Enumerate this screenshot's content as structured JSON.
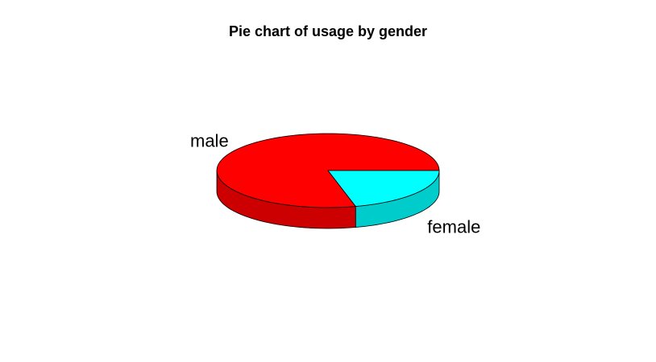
{
  "chart_data": {
    "type": "pie",
    "style": "3d",
    "title": "Pie chart of usage by gender",
    "categories": [
      "male",
      "female"
    ],
    "values": [
      79,
      21
    ],
    "colors": [
      "#ff0000",
      "#00ffff"
    ],
    "side_colors": [
      "#cc0000",
      "#00cccc"
    ],
    "legend": "none"
  }
}
